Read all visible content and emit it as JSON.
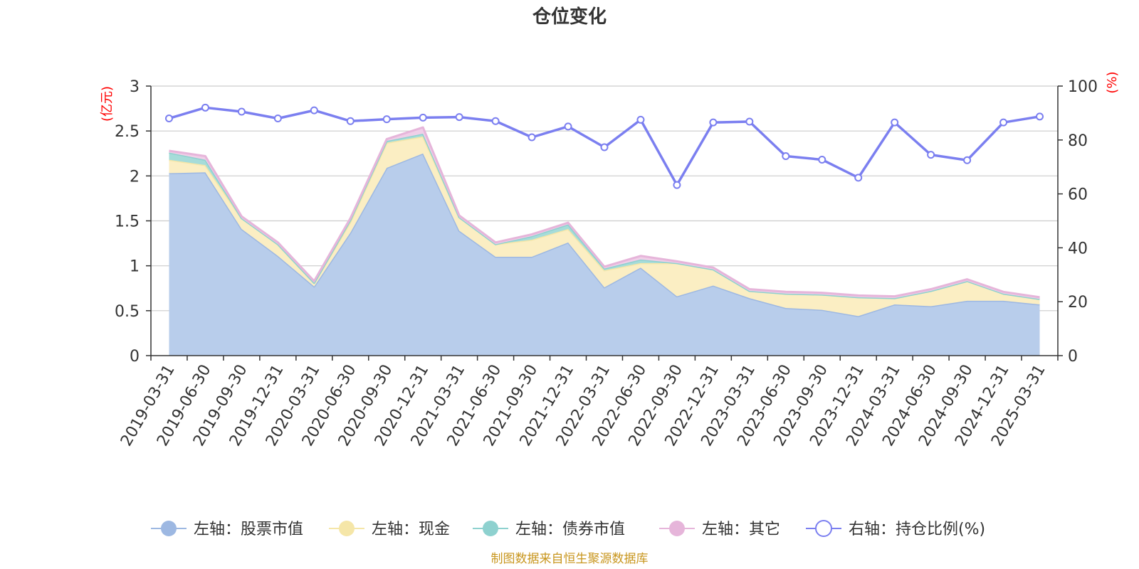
{
  "chart_data": {
    "type": "area",
    "title": "仓位变化",
    "left_unit": "(亿元)",
    "right_unit": "(%)",
    "source": "制图数据来自恒生聚源数据库",
    "categories": [
      "2019-03-31",
      "2019-06-30",
      "2019-09-30",
      "2019-12-31",
      "2020-03-31",
      "2020-06-30",
      "2020-09-30",
      "2020-12-31",
      "2021-03-31",
      "2021-06-30",
      "2021-09-30",
      "2021-12-31",
      "2022-03-31",
      "2022-06-30",
      "2022-09-30",
      "2022-12-31",
      "2023-03-31",
      "2023-06-30",
      "2023-09-30",
      "2023-12-31",
      "2024-03-31",
      "2024-06-30",
      "2024-09-30",
      "2024-12-31",
      "2025-03-31"
    ],
    "left_axis": {
      "min": 0,
      "max": 3,
      "ticks": [
        "0",
        "0.5",
        "1",
        "1.5",
        "2",
        "2.5",
        "3"
      ]
    },
    "right_axis": {
      "min": 0,
      "max": 100,
      "ticks": [
        "0",
        "20",
        "40",
        "60",
        "80",
        "100"
      ]
    },
    "series": [
      {
        "name": "左轴：股票市值",
        "color": "#9db8e2",
        "fill": "#b8cdeb",
        "axis": "left",
        "stack": true,
        "values": [
          2.03,
          2.04,
          1.41,
          1.11,
          0.77,
          1.37,
          2.09,
          2.25,
          1.39,
          1.1,
          1.1,
          1.26,
          0.76,
          0.98,
          0.66,
          0.78,
          0.64,
          0.53,
          0.51,
          0.44,
          0.57,
          0.55,
          0.61,
          0.61,
          0.57
        ]
      },
      {
        "name": "左轴：现金",
        "color": "#f5e6a8",
        "fill": "#fbeec3",
        "axis": "left",
        "stack": true,
        "values": [
          0.15,
          0.08,
          0.12,
          0.13,
          0.04,
          0.12,
          0.28,
          0.19,
          0.15,
          0.14,
          0.19,
          0.15,
          0.19,
          0.05,
          0.37,
          0.18,
          0.08,
          0.16,
          0.17,
          0.21,
          0.07,
          0.17,
          0.22,
          0.08,
          0.06
        ]
      },
      {
        "name": "左轴：债券市值",
        "color": "#8ed1cf",
        "fill": "#a6dcd9",
        "axis": "left",
        "stack": true,
        "values": [
          0.08,
          0.06,
          0,
          0,
          0,
          0.02,
          0.02,
          0.03,
          0,
          0,
          0.04,
          0.05,
          0.02,
          0.04,
          0,
          0,
          0,
          0,
          0,
          0,
          0,
          0,
          0,
          0,
          0
        ]
      },
      {
        "name": "左轴：其它",
        "color": "#e6b5da",
        "fill": "#f0cfe8",
        "axis": "left",
        "stack": true,
        "values": [
          0.02,
          0.04,
          0.02,
          0.02,
          0.02,
          0.02,
          0.02,
          0.07,
          0.02,
          0.02,
          0.02,
          0.02,
          0.02,
          0.04,
          0.02,
          0.02,
          0.02,
          0.02,
          0.02,
          0.02,
          0.02,
          0.02,
          0.02,
          0.02,
          0.02
        ]
      },
      {
        "name": "右轴：持仓比例(%)",
        "color": "#7b7ff0",
        "axis": "right",
        "stack": false,
        "values": [
          88.0,
          92.0,
          90.5,
          88.0,
          91.0,
          87.0,
          87.7,
          88.3,
          88.5,
          87.0,
          81.0,
          85.0,
          77.3,
          87.5,
          63.3,
          86.5,
          86.8,
          74.0,
          72.7,
          66.0,
          86.5,
          74.5,
          72.5,
          86.5,
          88.7
        ]
      }
    ]
  }
}
